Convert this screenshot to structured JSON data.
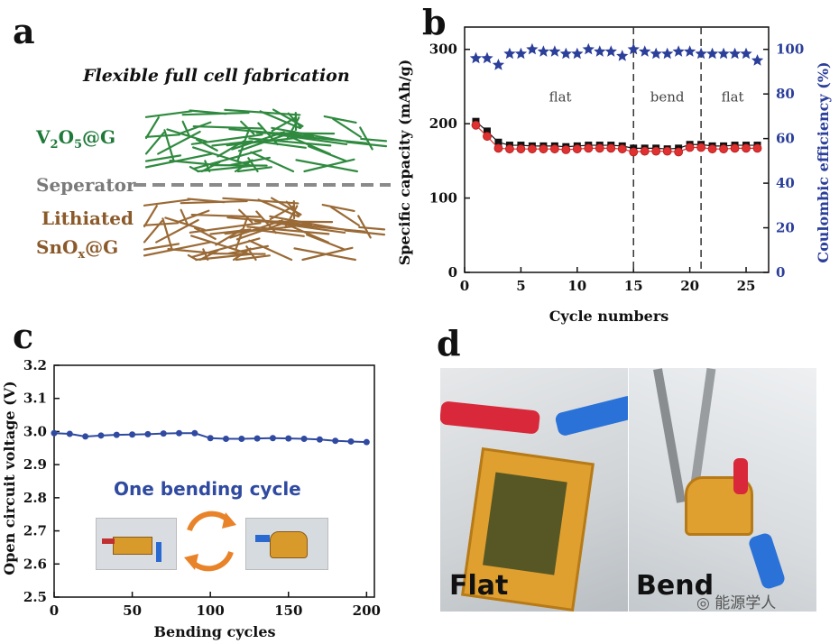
{
  "panels": {
    "a": "a",
    "b": "b",
    "c": "c",
    "d": "d"
  },
  "panel_a": {
    "title": "Flexible full cell fabrication",
    "layer_top": {
      "text": "V",
      "sub1": "2",
      "mid": "O",
      "sub2": "5",
      "tail": "@G",
      "color": "#1f7a3a"
    },
    "separator": {
      "text": "Seperator",
      "color": "#7a7a7a"
    },
    "layer_bottom_line1": "Lithiated",
    "layer_bottom_line2": {
      "text": "SnO",
      "sub": "x",
      "tail": "@G",
      "color": "#8a5a2b"
    },
    "mesh_colors": {
      "top": "#2f8a3f",
      "bottom": "#9a6a36"
    }
  },
  "panel_c_inset": {
    "label": "One bending cycle",
    "label_color": "#2f4aa0",
    "arrow_color": "#e8832a"
  },
  "panel_d": {
    "left_label": "Flat",
    "right_label": "Bend"
  },
  "watermark": "能源学人",
  "chart_data": [
    {
      "panel": "b",
      "type": "scatter",
      "xlabel": "Cycle numbers",
      "ylabel": "Specific capacity (mAh/g)",
      "y2label": "Coulombic efficiency (%)",
      "xlim": [
        0,
        27
      ],
      "ylim": [
        0,
        330
      ],
      "y2lim": [
        0,
        110
      ],
      "x_ticks": [
        0,
        5,
        10,
        15,
        20,
        25
      ],
      "y_ticks": [
        0,
        100,
        200,
        300
      ],
      "y2_ticks": [
        0,
        20,
        40,
        60,
        80,
        100
      ],
      "regions": [
        {
          "label": "flat",
          "x": 8.5
        },
        {
          "label": "bend",
          "x": 18
        },
        {
          "label": "flat",
          "x": 23.8
        }
      ],
      "dividers": [
        15,
        21
      ],
      "x": [
        1,
        2,
        3,
        4,
        5,
        6,
        7,
        8,
        9,
        10,
        11,
        12,
        13,
        14,
        15,
        16,
        17,
        18,
        19,
        20,
        21,
        22,
        23,
        24,
        25,
        26
      ],
      "series": [
        {
          "axis": "left",
          "marker": "square",
          "color": "#111111",
          "values": [
            203,
            190,
            175,
            171,
            171,
            170,
            170,
            170,
            169,
            170,
            171,
            171,
            171,
            170,
            167,
            167,
            167,
            166,
            167,
            172,
            172,
            170,
            170,
            171,
            171,
            171
          ]
        },
        {
          "axis": "left",
          "marker": "circle",
          "color": "#e03030",
          "values": [
            198,
            183,
            167,
            166,
            166,
            166,
            166,
            166,
            165,
            166,
            167,
            167,
            167,
            166,
            162,
            163,
            163,
            163,
            162,
            168,
            168,
            166,
            166,
            167,
            167,
            167
          ]
        },
        {
          "axis": "right",
          "marker": "star",
          "color": "#2b3f9a",
          "values": [
            96,
            96,
            93,
            98,
            98,
            100,
            99,
            99,
            98,
            98,
            100,
            99,
            99,
            97,
            100,
            99,
            98,
            98,
            99,
            99,
            98,
            98,
            98,
            98,
            98,
            95
          ]
        }
      ]
    },
    {
      "panel": "c",
      "type": "line",
      "xlabel": "Bending cycles",
      "ylabel": "Open circuit voltage (V)",
      "xlim": [
        0,
        205
      ],
      "ylim": [
        2.5,
        3.2
      ],
      "x_ticks": [
        0,
        50,
        100,
        150,
        200
      ],
      "y_ticks": [
        2.5,
        2.6,
        2.7,
        2.8,
        2.9,
        3.0,
        3.1,
        3.2
      ],
      "series": [
        {
          "color": "#2f4aa0",
          "x": [
            0,
            10,
            20,
            30,
            40,
            50,
            60,
            70,
            80,
            90,
            100,
            110,
            120,
            130,
            140,
            150,
            160,
            170,
            180,
            190,
            200
          ],
          "values": [
            2.995,
            2.993,
            2.985,
            2.988,
            2.99,
            2.991,
            2.992,
            2.994,
            2.995,
            2.995,
            2.98,
            2.978,
            2.978,
            2.979,
            2.98,
            2.979,
            2.978,
            2.976,
            2.972,
            2.97,
            2.968
          ]
        }
      ]
    }
  ]
}
